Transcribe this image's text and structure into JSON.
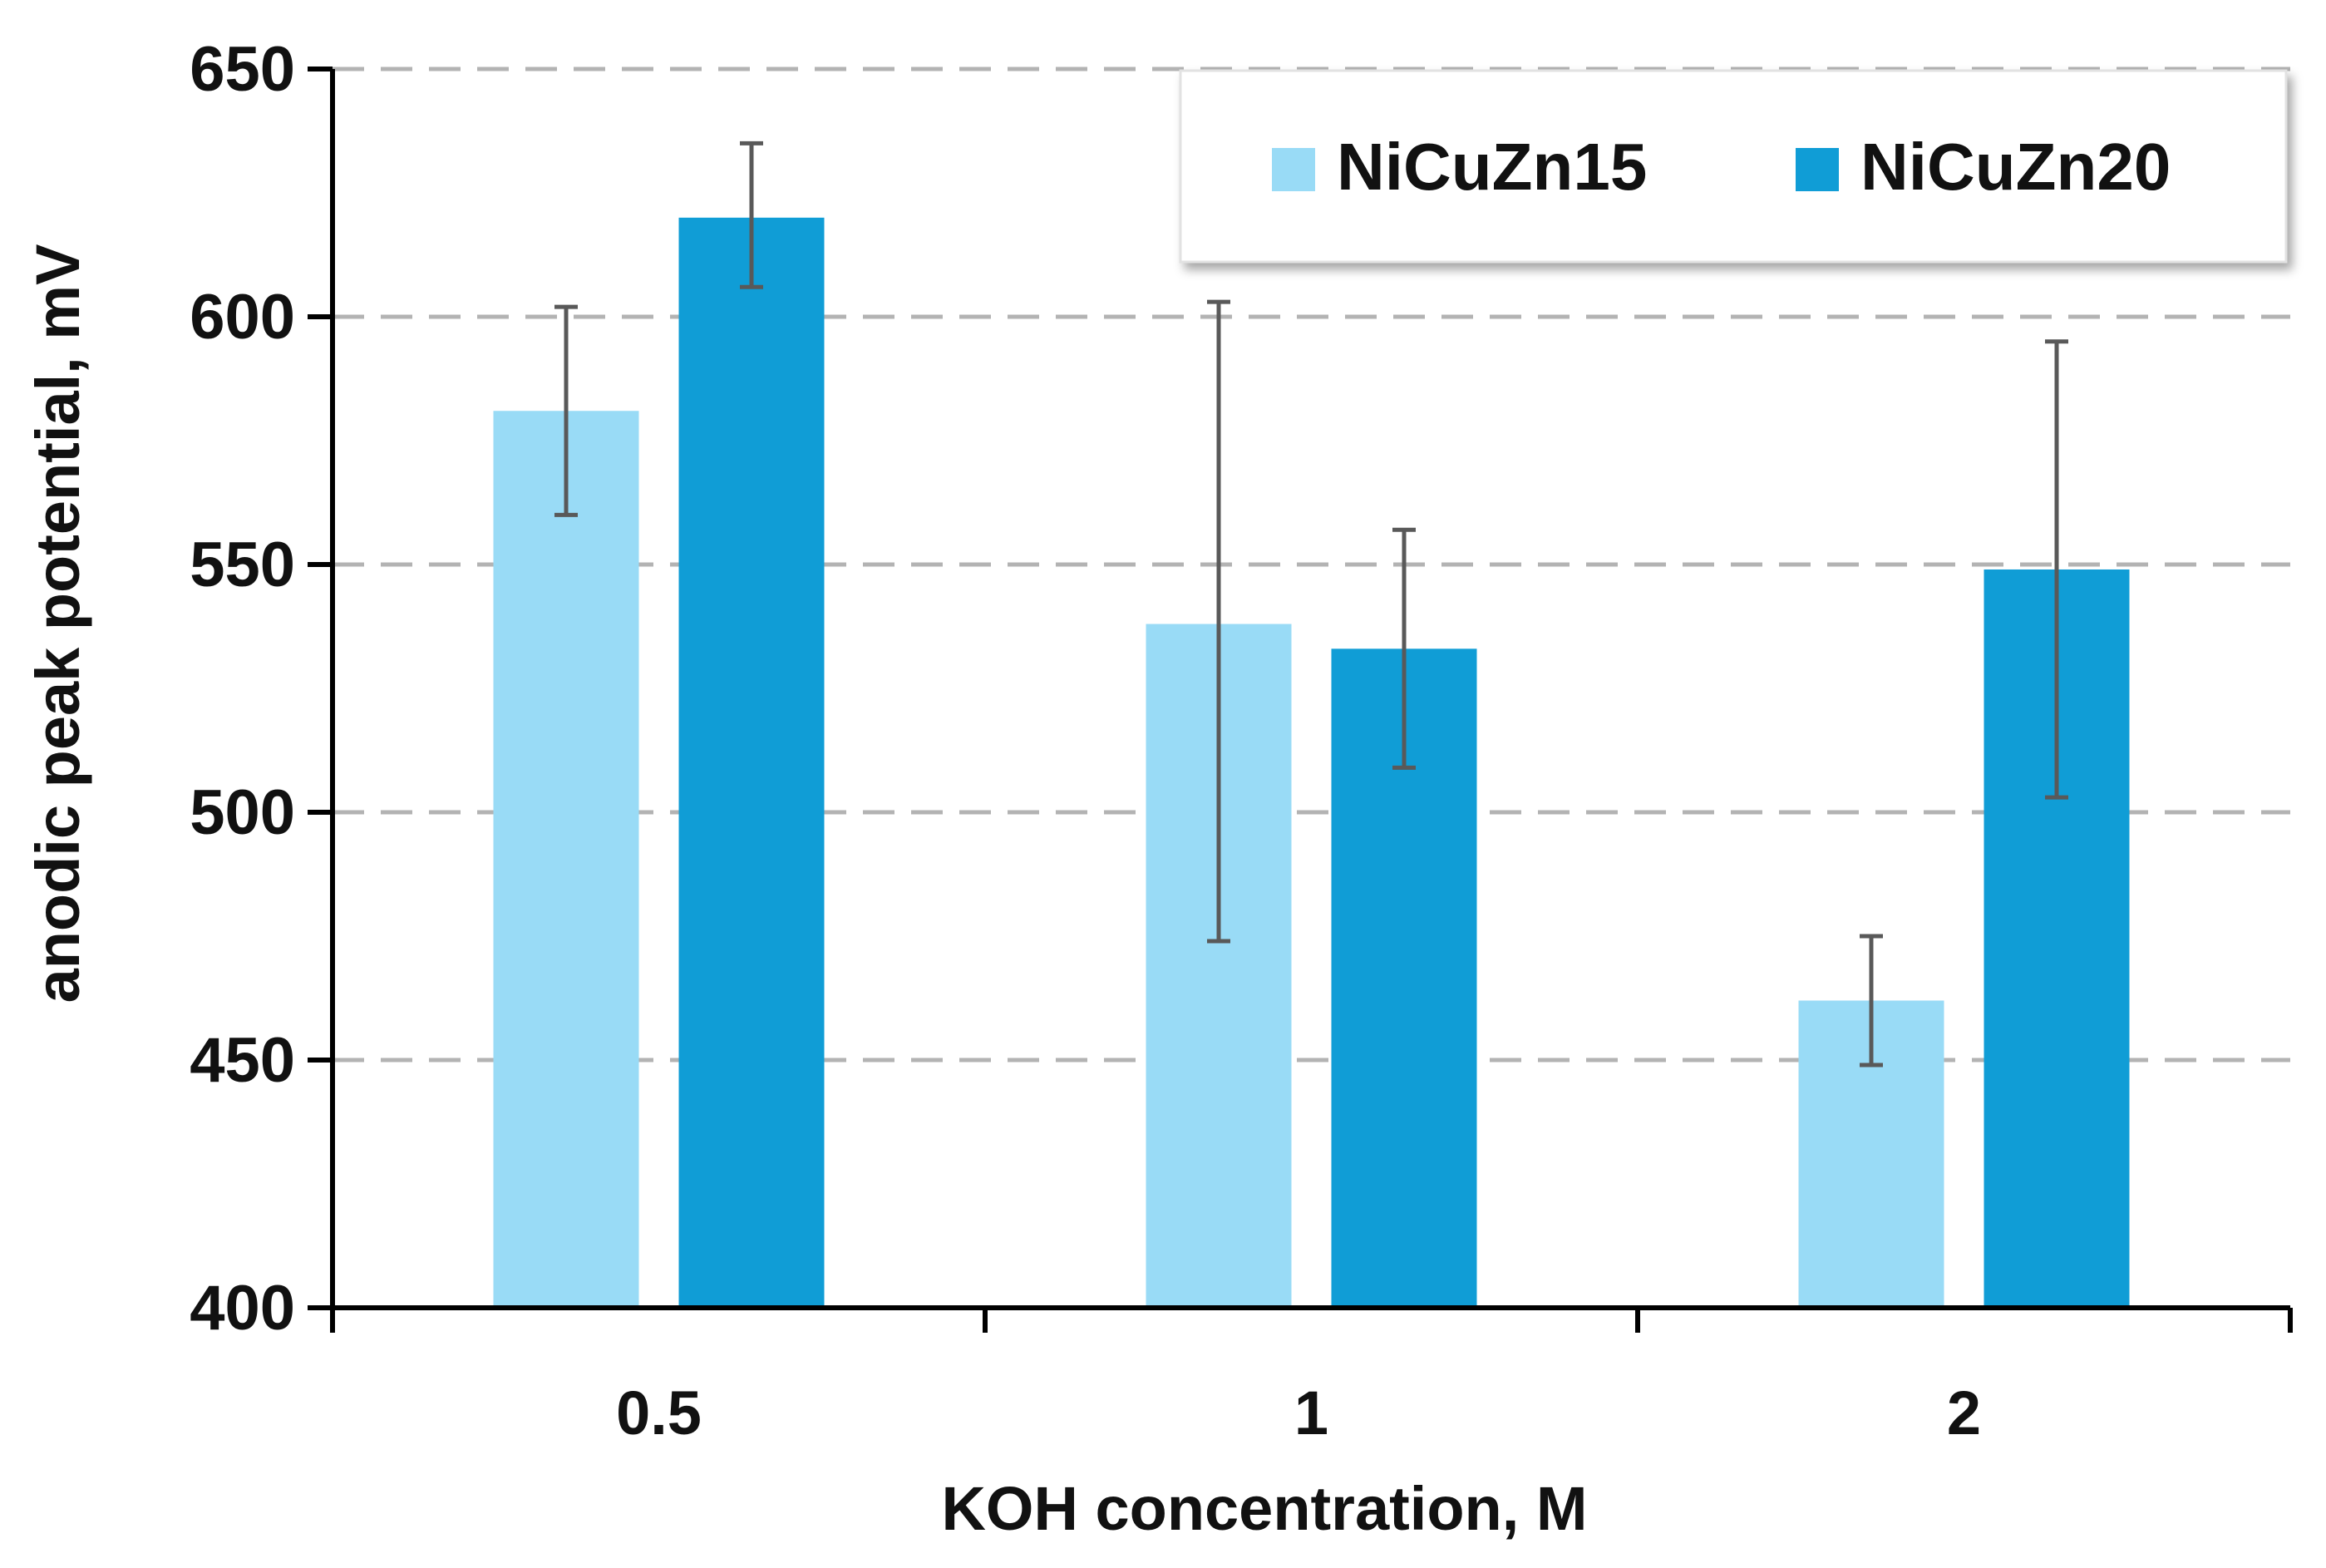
{
  "chart_data": {
    "type": "bar",
    "title": "",
    "xlabel": "KOH concentration, M",
    "ylabel": "anodic peak potential, mV",
    "categories": [
      "0.5",
      "1",
      "2"
    ],
    "ylim": [
      400,
      650
    ],
    "yticks": [
      400,
      450,
      500,
      550,
      600,
      650
    ],
    "grid": true,
    "legend_position": "top-right",
    "series": [
      {
        "name": "NiCuZn15",
        "color": "#99dbf6",
        "values": [
          581,
          538,
          462
        ],
        "error_low": [
          560,
          474,
          449
        ],
        "error_high": [
          602,
          603,
          475
        ]
      },
      {
        "name": "NiCuZn20",
        "color": "#109dd6",
        "values": [
          620,
          533,
          549
        ],
        "error_low": [
          606,
          509,
          503
        ],
        "error_high": [
          635,
          557,
          595
        ]
      }
    ]
  }
}
